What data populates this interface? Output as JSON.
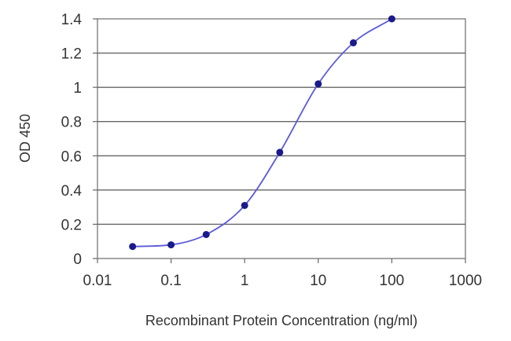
{
  "chart_data": {
    "type": "scatter",
    "title": "",
    "xlabel": "Recombinant Protein Concentration (ng/ml)",
    "ylabel": "OD 450",
    "xscale": "log",
    "xlim": [
      0.01,
      1000
    ],
    "ylim": [
      0,
      1.4
    ],
    "grid": "horizontal",
    "legend": "none",
    "x_ticks": [
      0.01,
      0.1,
      1,
      10,
      100,
      1000
    ],
    "x_tick_labels": [
      "0.01",
      "0.1",
      "1",
      "10",
      "100",
      "1000"
    ],
    "y_ticks": [
      0,
      0.2,
      0.4,
      0.6,
      0.8,
      1,
      1.2,
      1.4
    ],
    "y_tick_labels": [
      "0",
      "0.2",
      "0.4",
      "0.6",
      "0.8",
      "1",
      "1.2",
      "1.4"
    ],
    "series": [
      {
        "x": [
          0.03,
          0.1,
          0.3,
          1,
          3,
          10,
          30,
          100
        ],
        "y": [
          0.07,
          0.08,
          0.14,
          0.31,
          0.62,
          1.02,
          1.26,
          1.4
        ],
        "color": "#1a1a8c",
        "line_color": "#5a5adb",
        "fit": "smooth curve"
      }
    ]
  }
}
